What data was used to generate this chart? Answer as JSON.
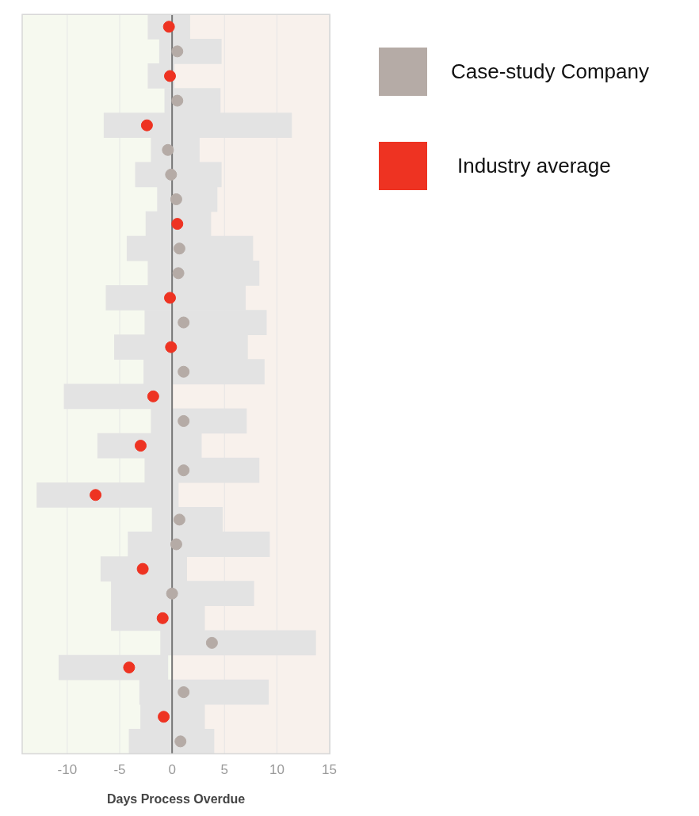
{
  "chart_data": {
    "type": "bar",
    "orientation": "horizontal",
    "xlabel": "Days Process Overdue",
    "categories": [
      null,
      null,
      null,
      null,
      null,
      null,
      null,
      null,
      null,
      null,
      null,
      null,
      null,
      null,
      null,
      null,
      null,
      null,
      null,
      null,
      null,
      null,
      null,
      null,
      null,
      null,
      null,
      null,
      null,
      null
    ],
    "xlim": [
      -14.3,
      15.05
    ],
    "xticks": [
      -10,
      -5,
      0,
      5,
      10,
      15
    ],
    "grid": "x",
    "legend": "top right",
    "marker": "circle",
    "bands": [
      {
        "axis": "x",
        "from": -14.3,
        "to": 0,
        "color": "#f6f9ef"
      },
      {
        "axis": "x",
        "from": 0,
        "to": 15.05,
        "color": "#f8f1ec"
      }
    ],
    "ref_lines": [
      {
        "axis": "x",
        "value": 0,
        "color": "#777777"
      }
    ],
    "series": [
      {
        "color": "#e3e3e3",
        "base": [
          -2.3,
          -1.2,
          -2.3,
          -0.7,
          -6.5,
          -2.0,
          -3.5,
          -1.4,
          -2.5,
          -4.3,
          -2.3,
          -6.3,
          -2.6,
          -5.5,
          -2.7,
          -10.3,
          -2.0,
          -7.1,
          -2.6,
          -12.9,
          -1.9,
          -4.2,
          -6.8,
          -5.8,
          -5.8,
          -1.1,
          -10.8,
          -3.1,
          -3.0,
          -4.1
        ],
        "values": [
          4.0,
          5.9,
          2.5,
          5.3,
          17.9,
          4.6,
          8.2,
          5.7,
          6.2,
          12.0,
          10.6,
          13.3,
          11.6,
          12.7,
          11.5,
          10.3,
          9.1,
          9.9,
          10.9,
          13.5,
          6.7,
          13.5,
          8.2,
          13.6,
          8.9,
          14.8,
          10.4,
          12.3,
          6.1,
          8.1
        ]
      },
      {
        "type": "scatter",
        "name": "Case-study Company",
        "color": "#b5aba6",
        "values": [
          null,
          0.5,
          null,
          0.5,
          null,
          -0.4,
          -0.1,
          0.4,
          null,
          0.7,
          0.6,
          null,
          1.1,
          null,
          1.1,
          null,
          1.1,
          null,
          1.1,
          null,
          0.7,
          0.4,
          null,
          0.0,
          null,
          3.8,
          null,
          1.1,
          null,
          0.8
        ]
      },
      {
        "type": "scatter",
        "name": "Industry average",
        "color": "#ee3322",
        "values": [
          -0.3,
          null,
          -0.2,
          null,
          -2.4,
          null,
          null,
          null,
          0.5,
          null,
          null,
          -0.2,
          null,
          -0.1,
          null,
          -1.8,
          null,
          -3.0,
          null,
          -7.3,
          null,
          null,
          -2.8,
          null,
          -0.9,
          null,
          -4.1,
          null,
          -0.8,
          null
        ]
      }
    ]
  }
}
